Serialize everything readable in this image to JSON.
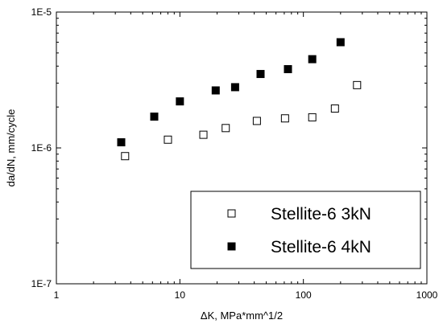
{
  "chart_data": {
    "type": "scatter",
    "xlabel": "ΔK, MPa*mm^1/2",
    "ylabel": "da/dN, mm/cycle",
    "xscale": "log",
    "yscale": "log",
    "xlim": [
      1,
      1000
    ],
    "ylim": [
      1e-07,
      1e-05
    ],
    "x_tick_labels": [
      "1",
      "10",
      "100",
      "1000"
    ],
    "y_tick_labels": [
      "1E-7",
      "1E-6",
      "1E-5"
    ],
    "grid": false,
    "legend_position": "bottom-right",
    "series": [
      {
        "name": "Stellite-6 3kN",
        "marker": "open-square",
        "color": "#000000",
        "points": [
          [
            3.6,
            8.7e-07
          ],
          [
            8.0,
            1.15e-06
          ],
          [
            15.5,
            1.25e-06
          ],
          [
            23.5,
            1.4e-06
          ],
          [
            42.0,
            1.58e-06
          ],
          [
            71.0,
            1.65e-06
          ],
          [
            118.0,
            1.68e-06
          ],
          [
            180.0,
            1.95e-06
          ],
          [
            272.0,
            2.9e-06
          ]
        ]
      },
      {
        "name": "Stellite-6 4kN",
        "marker": "filled-square",
        "color": "#000000",
        "points": [
          [
            3.35,
            1.1e-06
          ],
          [
            6.2,
            1.7e-06
          ],
          [
            10.0,
            2.2e-06
          ],
          [
            19.5,
            2.65e-06
          ],
          [
            28.0,
            2.8e-06
          ],
          [
            45.0,
            3.5e-06
          ],
          [
            75.0,
            3.8e-06
          ],
          [
            118.0,
            4.5e-06
          ],
          [
            200.0,
            6e-06
          ]
        ]
      }
    ]
  }
}
